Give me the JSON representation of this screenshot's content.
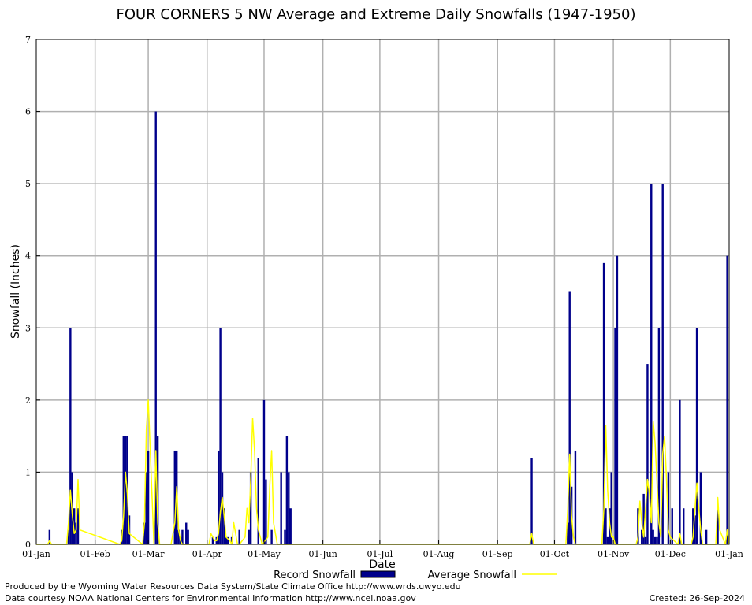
{
  "chart_data": {
    "type": "bar",
    "title": "FOUR CORNERS 5 NW Average and Extreme Daily Snowfalls (1947-1950)",
    "xlabel": "Date",
    "ylabel": "Snowfall (Inches)",
    "ylim": [
      0,
      7
    ],
    "yticks": [
      "0",
      "1",
      "2",
      "3",
      "4",
      "5",
      "6",
      "7"
    ],
    "xticks": [
      {
        "label": "01-Jan",
        "day": 1
      },
      {
        "label": "01-Feb",
        "day": 32
      },
      {
        "label": "01-Mar",
        "day": 60
      },
      {
        "label": "01-Apr",
        "day": 91
      },
      {
        "label": "01-May",
        "day": 121
      },
      {
        "label": "01-Jun",
        "day": 152
      },
      {
        "label": "01-Jul",
        "day": 182
      },
      {
        "label": "01-Aug",
        "day": 213
      },
      {
        "label": "01-Sep",
        "day": 244
      },
      {
        "label": "01-Oct",
        "day": 274
      },
      {
        "label": "01-Nov",
        "day": 305
      },
      {
        "label": "01-Dec",
        "day": 335
      },
      {
        "label": "01-Jan",
        "day": 366
      }
    ],
    "grid": true,
    "legend_position": "bottom",
    "series": [
      {
        "name": "Record Snowfall",
        "kind": "bar",
        "color": "#00008b",
        "x": [
          8,
          18,
          19,
          20,
          21,
          22,
          23,
          46,
          47,
          48,
          49,
          50,
          58,
          59,
          60,
          64,
          65,
          74,
          75,
          76,
          77,
          78,
          80,
          81,
          94,
          96,
          97,
          98,
          99,
          100,
          101,
          102,
          104,
          108,
          113,
          114,
          118,
          121,
          122,
          125,
          130,
          132,
          133,
          134,
          135,
          262,
          281,
          282,
          283,
          285,
          300,
          301,
          302,
          303,
          304,
          306,
          307,
          318,
          320,
          321,
          322,
          323,
          325,
          326,
          327,
          328,
          329,
          331,
          334,
          336,
          340,
          342,
          347,
          348,
          349,
          351,
          354,
          360,
          365
        ],
        "values": [
          0.2,
          0.2,
          3.0,
          1.0,
          0.5,
          0.3,
          0.5,
          0.2,
          1.5,
          1.5,
          1.5,
          0.4,
          0.3,
          1.0,
          1.3,
          6.0,
          1.5,
          1.3,
          1.3,
          0.2,
          0.1,
          0.2,
          0.3,
          0.2,
          0.1,
          0.1,
          1.3,
          3.0,
          1.0,
          0.5,
          0.1,
          0.1,
          0.1,
          0.2,
          0.2,
          1.0,
          1.2,
          2.0,
          0.9,
          0.2,
          1.0,
          0.2,
          1.5,
          1.0,
          0.5,
          1.2,
          0.3,
          3.5,
          0.8,
          1.3,
          3.9,
          0.5,
          0.1,
          0.5,
          1.0,
          3.0,
          4.0,
          0.5,
          0.2,
          0.7,
          0.1,
          2.5,
          5.0,
          0.2,
          0.1,
          0.1,
          3.0,
          5.0,
          1.0,
          0.5,
          2.0,
          0.5,
          0.5,
          0.4,
          3.0,
          1.0,
          0.2,
          0.5,
          4.0
        ]
      },
      {
        "name": "Average Snowfall",
        "kind": "line",
        "color": "#ffff00",
        "x": [
          1,
          7,
          8,
          9,
          17,
          18,
          19,
          20,
          21,
          22,
          23,
          24,
          45,
          46,
          47,
          48,
          49,
          50,
          57,
          58,
          59,
          60,
          63,
          64,
          65,
          66,
          72,
          73,
          74,
          75,
          76,
          77,
          78,
          79,
          92,
          93,
          94,
          95,
          96,
          97,
          98,
          99,
          100,
          101,
          103,
          104,
          105,
          107,
          108,
          111,
          112,
          113,
          114,
          115,
          116,
          117,
          118,
          119,
          120,
          123,
          124,
          125,
          126,
          127,
          128,
          261,
          262,
          263,
          280,
          281,
          282,
          283,
          284,
          285,
          299,
          300,
          301,
          302,
          303,
          304,
          305,
          306,
          307,
          308,
          317,
          318,
          319,
          320,
          321,
          322,
          323,
          324,
          325,
          326,
          327,
          328,
          329,
          330,
          331,
          332,
          333,
          334,
          335,
          339,
          340,
          341,
          346,
          347,
          348,
          349,
          350,
          351,
          352,
          359,
          360,
          361,
          364,
          365,
          366
        ],
        "values": [
          0,
          0,
          0.05,
          0,
          0,
          0.3,
          0.75,
          0.4,
          0.15,
          0.2,
          0.9,
          0.2,
          0,
          0.05,
          0.4,
          1.0,
          0.7,
          0.15,
          0,
          0.3,
          1.6,
          2.0,
          0,
          1.3,
          0.3,
          0,
          0,
          0.15,
          0.3,
          0.8,
          0.2,
          0.05,
          0,
          0,
          0,
          0.15,
          0.1,
          0.05,
          0.05,
          0.15,
          0.45,
          0.65,
          0.4,
          0.1,
          0.05,
          0,
          0.3,
          0,
          0,
          0.1,
          0.5,
          0.3,
          0.9,
          1.75,
          1.3,
          0.5,
          0.2,
          0.1,
          0,
          0.1,
          0.8,
          1.3,
          0.3,
          0.15,
          0,
          0,
          0.15,
          0,
          0,
          0.5,
          1.25,
          0.4,
          0.1,
          0,
          0,
          0.5,
          1.65,
          0.75,
          0.3,
          0.1,
          0.1,
          0,
          0,
          0,
          0,
          0.1,
          0.6,
          0.3,
          0.1,
          0.5,
          0.9,
          0.7,
          0.3,
          1.7,
          1.4,
          0.85,
          0.3,
          0.1,
          1.25,
          1.5,
          0.9,
          0.2,
          0.1,
          0,
          0.15,
          0,
          0,
          0.1,
          0.5,
          0.85,
          0.5,
          0.2,
          0,
          0,
          0.65,
          0.2,
          0,
          0.2,
          0
        ]
      }
    ]
  },
  "footer": {
    "line1": "Produced by the Wyoming Water Resources Data System/State Climate Office http://www.wrds.uwyo.edu",
    "line2": "Data courtesy NOAA National Centers for Environmental Information http://www.ncei.noaa.gov",
    "created": "Created:  26-Sep-2024"
  }
}
